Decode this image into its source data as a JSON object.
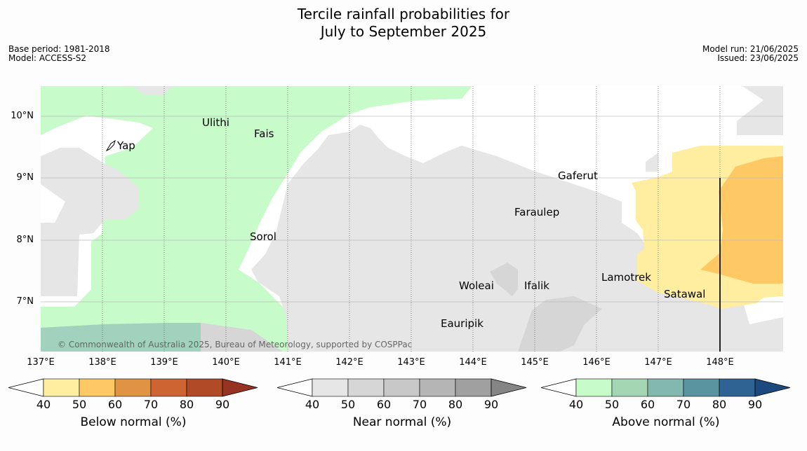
{
  "title_line1": "Tercile rainfall probabilities for",
  "title_line2": "July to September 2025",
  "base_period": "Base period: 1981-2018",
  "model": "Model: ACCESS-S2",
  "model_run": "Model run: 21/06/2025",
  "issued": "Issued: 23/06/2025",
  "lat_labels": [
    "10°N",
    "9°N",
    "8°N",
    "7°N"
  ],
  "lon_labels": [
    "137°E",
    "138°E",
    "139°E",
    "140°E",
    "141°E",
    "142°E",
    "143°E",
    "144°E",
    "145°E",
    "146°E",
    "147°E",
    "148°E"
  ],
  "places": [
    "Yap",
    "Ulithi",
    "Fais",
    "Sorol",
    "Gaferut",
    "Faraulep",
    "Woleai",
    "Ifalik",
    "Eauripik",
    "Lamotrek",
    "Satawal"
  ],
  "copyright": "© Commonwealth of Australia 2025, Bureau of Meteorology, supported by COSPPac",
  "colorbars": [
    {
      "label": "Below normal (%)",
      "ticks": [
        "40",
        "50",
        "60",
        "70",
        "80",
        "90"
      ],
      "colors": [
        "#ffeea0",
        "#fec965",
        "#e09343",
        "#ce6431",
        "#b04a27",
        "#973322"
      ]
    },
    {
      "label": "Near normal (%)",
      "ticks": [
        "40",
        "50",
        "60",
        "70",
        "80",
        "90"
      ],
      "colors": [
        "#e6e6e6",
        "#d6d6d6",
        "#c8c8c8",
        "#b5b5b5",
        "#a0a0a0",
        "#858585"
      ]
    },
    {
      "label": "Above normal (%)",
      "ticks": [
        "40",
        "50",
        "60",
        "70",
        "80",
        "90"
      ],
      "colors": [
        "#c8fbca",
        "#a5d6b3",
        "#83b8ae",
        "#5a94a0",
        "#2f6394",
        "#1c4a7f"
      ]
    }
  ]
}
